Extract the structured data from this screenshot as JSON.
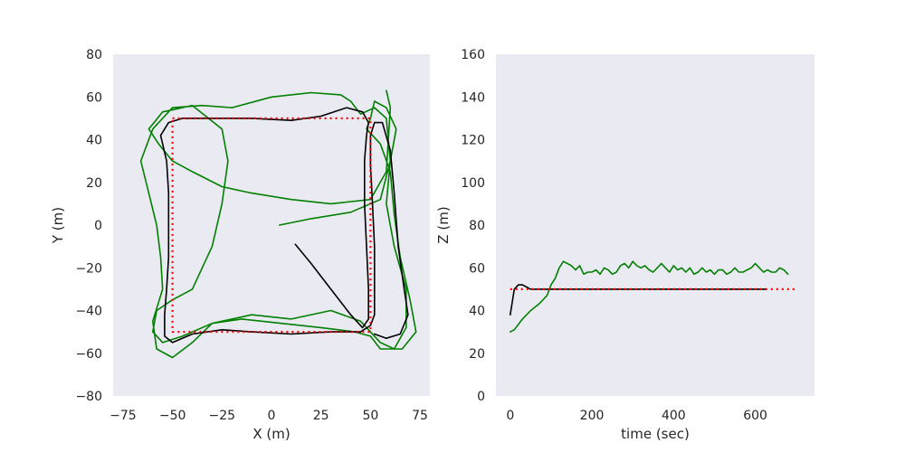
{
  "colors": {
    "plot_background": "#eaeaf2",
    "reference": "#ff0000",
    "estimate_black": "#000000",
    "estimate_green": "#008000"
  },
  "chart_data": [
    {
      "type": "line",
      "xlabel": "X (m)",
      "ylabel": "Y (m)",
      "xlim": [
        -80,
        80
      ],
      "ylim": [
        -80,
        80
      ],
      "x_ticks": [
        -75,
        -50,
        -25,
        0,
        25,
        50,
        75
      ],
      "x_tick_labels": [
        "−75",
        "−50",
        "−25",
        "0",
        "25",
        "50",
        "75"
      ],
      "y_ticks": [
        -80,
        -60,
        -40,
        -20,
        0,
        20,
        40,
        60,
        80
      ],
      "y_tick_labels": [
        "−80",
        "−60",
        "−40",
        "−20",
        "0",
        "20",
        "40",
        "60",
        "80"
      ],
      "grid": false,
      "series": [
        {
          "style": "dotted",
          "color": "red",
          "points": [
            [
              -50,
              50
            ],
            [
              50,
              50
            ],
            [
              50,
              -50
            ],
            [
              -50,
              -50
            ],
            [
              -50,
              50
            ]
          ]
        },
        {
          "style": "solid",
          "color": "black",
          "points": [
            [
              12,
              -9
            ],
            [
              20,
              -18
            ],
            [
              30,
              -30
            ],
            [
              40,
              -42
            ],
            [
              46,
              -48
            ],
            [
              49,
              -44
            ],
            [
              49,
              -30
            ],
            [
              48,
              -10
            ],
            [
              47,
              10
            ],
            [
              47,
              30
            ],
            [
              48,
              42
            ],
            [
              49,
              48
            ],
            [
              46,
              53
            ],
            [
              38,
              55
            ],
            [
              25,
              51
            ],
            [
              10,
              49
            ],
            [
              -10,
              50
            ],
            [
              -30,
              50
            ],
            [
              -45,
              50
            ],
            [
              -52,
              48
            ],
            [
              -56,
              42
            ],
            [
              -53,
              30
            ],
            [
              -52,
              15
            ],
            [
              -52,
              0
            ],
            [
              -52,
              -15
            ],
            [
              -53,
              -30
            ],
            [
              -54,
              -42
            ],
            [
              -54,
              -52
            ],
            [
              -50,
              -55
            ],
            [
              -40,
              -51
            ],
            [
              -25,
              -49
            ],
            [
              -10,
              -50
            ],
            [
              10,
              -51
            ],
            [
              30,
              -50
            ],
            [
              45,
              -50
            ],
            [
              50,
              -47
            ],
            [
              52,
              -42
            ],
            [
              52,
              -30
            ],
            [
              52,
              -10
            ],
            [
              51,
              10
            ],
            [
              50,
              28
            ],
            [
              50,
              42
            ],
            [
              52,
              48
            ],
            [
              56,
              48
            ],
            [
              60,
              35
            ],
            [
              62,
              15
            ],
            [
              64,
              -10
            ],
            [
              67,
              -30
            ],
            [
              69,
              -42
            ],
            [
              65,
              -51
            ],
            [
              58,
              -53
            ],
            [
              52,
              -51
            ]
          ]
        },
        {
          "style": "solid",
          "color": "green",
          "points": [
            [
              4,
              0
            ],
            [
              20,
              3
            ],
            [
              40,
              6
            ],
            [
              55,
              12
            ],
            [
              60,
              30
            ],
            [
              58,
              50
            ],
            [
              52,
              55
            ],
            [
              45,
              52
            ],
            [
              40,
              58
            ],
            [
              35,
              61
            ],
            [
              20,
              62
            ],
            [
              0,
              60
            ],
            [
              -20,
              55
            ],
            [
              -35,
              56
            ],
            [
              -50,
              55
            ],
            [
              -60,
              45
            ],
            [
              -66,
              30
            ],
            [
              -62,
              15
            ],
            [
              -58,
              0
            ],
            [
              -56,
              -15
            ],
            [
              -55,
              -30
            ],
            [
              -60,
              -45
            ],
            [
              -58,
              -58
            ],
            [
              -50,
              -62
            ],
            [
              -40,
              -55
            ],
            [
              -30,
              -46
            ],
            [
              -10,
              -42
            ],
            [
              10,
              -44
            ],
            [
              30,
              -40
            ],
            [
              45,
              -45
            ],
            [
              55,
              -55
            ],
            [
              62,
              -58
            ],
            [
              68,
              -48
            ],
            [
              68,
              -30
            ],
            [
              62,
              -10
            ],
            [
              58,
              10
            ],
            [
              60,
              30
            ],
            [
              63,
              45
            ],
            [
              58,
              55
            ],
            [
              52,
              58
            ],
            [
              50,
              50
            ],
            [
              48,
              45
            ],
            [
              55,
              38
            ],
            [
              60,
              25
            ],
            [
              62,
              5
            ],
            [
              65,
              -15
            ],
            [
              70,
              -35
            ],
            [
              73,
              -50
            ],
            [
              66,
              -58
            ],
            [
              55,
              -58
            ],
            [
              50,
              -52
            ],
            [
              42,
              -50
            ],
            [
              25,
              -48
            ],
            [
              5,
              -46
            ],
            [
              -15,
              -44
            ],
            [
              -30,
              -46
            ],
            [
              -45,
              -52
            ],
            [
              -55,
              -55
            ],
            [
              -60,
              -50
            ],
            [
              -58,
              -40
            ],
            [
              -50,
              -35
            ],
            [
              -40,
              -30
            ],
            [
              -30,
              -10
            ],
            [
              -25,
              10
            ],
            [
              -22,
              30
            ],
            [
              -25,
              45
            ],
            [
              -40,
              56
            ],
            [
              -55,
              53
            ],
            [
              -62,
              45
            ],
            [
              -57,
              38
            ],
            [
              -50,
              30
            ],
            [
              -40,
              25
            ],
            [
              -25,
              18
            ],
            [
              -10,
              15
            ],
            [
              10,
              12
            ],
            [
              30,
              10
            ],
            [
              50,
              12
            ],
            [
              58,
              25
            ],
            [
              60,
              55
            ],
            [
              58,
              63
            ]
          ]
        }
      ]
    },
    {
      "type": "line",
      "xlabel": "time (sec)",
      "ylabel": "Z (m)",
      "xlim": [
        -35,
        745
      ],
      "ylim": [
        0,
        160
      ],
      "x_ticks": [
        0,
        200,
        400,
        600
      ],
      "x_tick_labels": [
        "0",
        "200",
        "400",
        "600"
      ],
      "y_ticks": [
        0,
        20,
        40,
        60,
        80,
        100,
        120,
        140,
        160
      ],
      "y_tick_labels": [
        "0",
        "20",
        "40",
        "60",
        "80",
        "100",
        "120",
        "140",
        "160"
      ],
      "grid": false,
      "series": [
        {
          "style": "dotted",
          "color": "red",
          "points": [
            [
              0,
              50
            ],
            [
              700,
              50
            ]
          ]
        },
        {
          "style": "solid",
          "color": "black",
          "points": [
            [
              0,
              38
            ],
            [
              10,
              50
            ],
            [
              20,
              52
            ],
            [
              30,
              52
            ],
            [
              40,
              51
            ],
            [
              50,
              50
            ],
            [
              100,
              50
            ],
            [
              200,
              50
            ],
            [
              300,
              50
            ],
            [
              400,
              50
            ],
            [
              500,
              50
            ],
            [
              600,
              50
            ],
            [
              625,
              50
            ]
          ]
        },
        {
          "style": "solid",
          "color": "green",
          "points": [
            [
              0,
              30
            ],
            [
              10,
              31
            ],
            [
              30,
              36
            ],
            [
              50,
              40
            ],
            [
              70,
              43
            ],
            [
              90,
              47
            ],
            [
              100,
              52
            ],
            [
              110,
              55
            ],
            [
              120,
              60
            ],
            [
              130,
              63
            ],
            [
              140,
              62
            ],
            [
              150,
              61
            ],
            [
              160,
              59
            ],
            [
              170,
              61
            ],
            [
              180,
              57
            ],
            [
              190,
              58
            ],
            [
              200,
              58
            ],
            [
              210,
              59
            ],
            [
              220,
              57
            ],
            [
              230,
              60
            ],
            [
              240,
              59
            ],
            [
              250,
              57
            ],
            [
              260,
              58
            ],
            [
              270,
              61
            ],
            [
              280,
              62
            ],
            [
              290,
              60
            ],
            [
              300,
              63
            ],
            [
              310,
              61
            ],
            [
              320,
              60
            ],
            [
              330,
              61
            ],
            [
              340,
              59
            ],
            [
              350,
              58
            ],
            [
              360,
              60
            ],
            [
              370,
              62
            ],
            [
              380,
              60
            ],
            [
              390,
              58
            ],
            [
              400,
              61
            ],
            [
              410,
              59
            ],
            [
              420,
              60
            ],
            [
              430,
              58
            ],
            [
              440,
              60
            ],
            [
              450,
              57
            ],
            [
              460,
              58
            ],
            [
              470,
              60
            ],
            [
              480,
              58
            ],
            [
              490,
              59
            ],
            [
              500,
              57
            ],
            [
              510,
              59
            ],
            [
              520,
              59
            ],
            [
              530,
              57
            ],
            [
              540,
              58
            ],
            [
              550,
              60
            ],
            [
              560,
              58
            ],
            [
              570,
              58
            ],
            [
              580,
              59
            ],
            [
              590,
              60
            ],
            [
              600,
              62
            ],
            [
              610,
              60
            ],
            [
              620,
              58
            ],
            [
              630,
              59
            ],
            [
              640,
              58
            ],
            [
              650,
              58
            ],
            [
              660,
              60
            ],
            [
              670,
              59
            ],
            [
              675,
              58
            ],
            [
              680,
              57
            ]
          ]
        }
      ]
    }
  ]
}
